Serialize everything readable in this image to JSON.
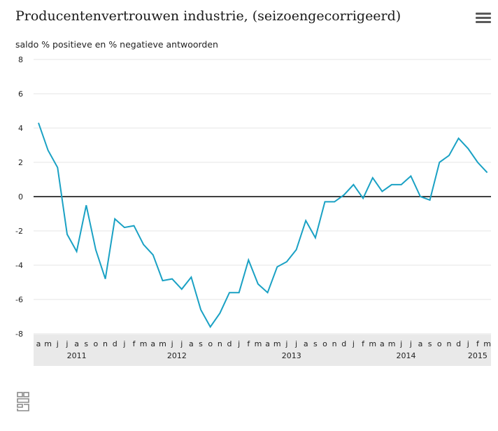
{
  "header": {
    "title": "Producentenvertrouwen industrie, (seizoengecorrigeerd)",
    "subtitle": "saldo % positieve en % negatieve antwoorden"
  },
  "menu": {
    "icon": "hamburger-menu-icon"
  },
  "logo": {
    "icon": "cbs-logo-icon"
  },
  "colors": {
    "line": "#1aa1c4",
    "zero_line": "#000000",
    "grid": "#e6e6e6",
    "axis_band": "#e9e9e9"
  },
  "chart_data": {
    "type": "line",
    "title": "Producentenvertrouwen industrie, (seizoengecorrigeerd)",
    "ylabel": "saldo % positieve en % negatieve antwoorden",
    "ylim": [
      -8,
      8
    ],
    "yticks": [
      8,
      6,
      4,
      2,
      0,
      -2,
      -4,
      -6,
      -8
    ],
    "grid": true,
    "month_labels": [
      "a",
      "m",
      "j",
      "j",
      "a",
      "s",
      "o",
      "n",
      "d",
      "j",
      "f",
      "m",
      "a",
      "m",
      "j",
      "j",
      "a",
      "s",
      "o",
      "n",
      "d",
      "j",
      "f",
      "m",
      "a",
      "m",
      "j",
      "j",
      "a",
      "s",
      "o",
      "n",
      "d",
      "j",
      "f",
      "m",
      "a",
      "m",
      "j",
      "j",
      "a",
      "s",
      "o",
      "n",
      "d",
      "j",
      "f",
      "m"
    ],
    "years": [
      {
        "label": "2011",
        "start": 0,
        "end": 8
      },
      {
        "label": "2012",
        "start": 9,
        "end": 20
      },
      {
        "label": "2013",
        "start": 21,
        "end": 32
      },
      {
        "label": "2014",
        "start": 33,
        "end": 44
      },
      {
        "label": "2015",
        "start": 45,
        "end": 47
      }
    ],
    "series": [
      {
        "values": [
          4.3,
          2.7,
          1.7,
          -2.2,
          -3.2,
          -0.5,
          -3.1,
          -4.8,
          -1.3,
          -1.8,
          -1.7,
          -2.8,
          -3.4,
          -4.9,
          -4.8,
          -5.4,
          -4.7,
          -6.6,
          -7.6,
          -6.8,
          -5.6,
          -5.6,
          -3.7,
          -5.1,
          -5.6,
          -4.1,
          -3.8,
          -3.1,
          -1.4,
          -2.4,
          -0.3,
          -0.3,
          0.1,
          0.7,
          -0.1,
          1.1,
          0.3,
          0.7,
          0.7,
          1.2,
          0.0,
          -0.2,
          2.0,
          2.4,
          3.4,
          2.8,
          2.0,
          1.4
        ]
      }
    ]
  }
}
